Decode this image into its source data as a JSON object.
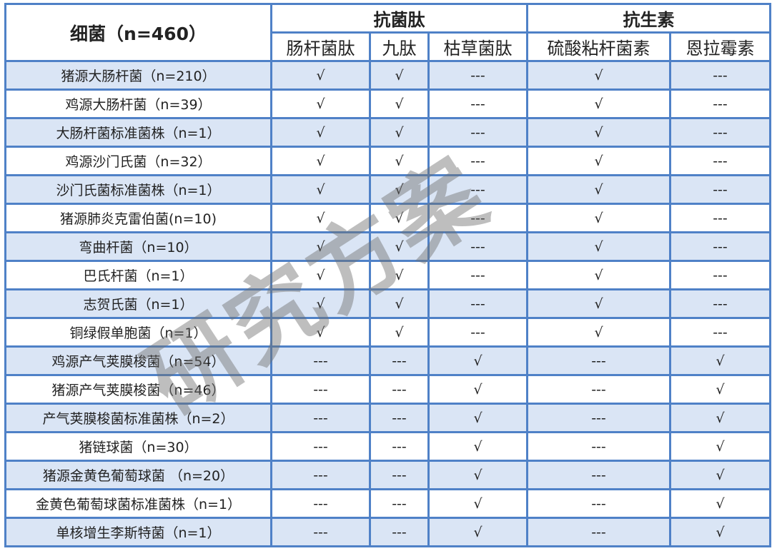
{
  "header": {
    "bacteria": "细菌（n=460）",
    "group1": "抗菌肽",
    "group2": "抗生素",
    "columns": [
      "肠杆菌肽",
      "九肽",
      "枯草菌肽",
      "硫酸粘杆菌素",
      "恩拉霉素"
    ]
  },
  "rows": [
    {
      "name": "猪源大肠杆菌（n=210）",
      "cells": [
        "√",
        "√",
        "---",
        "√",
        "---"
      ]
    },
    {
      "name": "鸡源大肠杆菌（n=39）",
      "cells": [
        "√",
        "√",
        "---",
        "√",
        "---"
      ]
    },
    {
      "name": "大肠杆菌标准菌株（n=1）",
      "cells": [
        "√",
        "√",
        "---",
        "√",
        "---"
      ]
    },
    {
      "name": "鸡源沙门氏菌（n=32）",
      "cells": [
        "√",
        "√",
        "---",
        "√",
        "---"
      ]
    },
    {
      "name": "沙门氏菌标准菌株（n=1）",
      "cells": [
        "√",
        "√",
        "---",
        "√",
        "---"
      ]
    },
    {
      "name": "猪源肺炎克雷伯菌(n=10)",
      "cells": [
        "√",
        "√",
        "---",
        "√",
        "---"
      ]
    },
    {
      "name": "弯曲杆菌（n=10）",
      "cells": [
        "√",
        "√",
        "---",
        "√",
        "---"
      ]
    },
    {
      "name": "巴氏杆菌（n=1）",
      "cells": [
        "√",
        "√",
        "---",
        "√",
        "---"
      ]
    },
    {
      "name": "志贺氏菌（n=1）",
      "cells": [
        "√",
        "√",
        "---",
        "√",
        "---"
      ]
    },
    {
      "name": "铜绿假单胞菌（n=1）",
      "cells": [
        "√",
        "√",
        "---",
        "√",
        "---"
      ]
    },
    {
      "name": "鸡源产气荚膜梭菌（n=54）",
      "cells": [
        "---",
        "---",
        "√",
        "---",
        "√"
      ]
    },
    {
      "name": "猪源产气荚膜梭菌（n=46）",
      "cells": [
        "---",
        "---",
        "√",
        "---",
        "√"
      ]
    },
    {
      "name": "产气荚膜梭菌标准菌株（n=2）",
      "cells": [
        "---",
        "---",
        "√",
        "---",
        "√"
      ]
    },
    {
      "name": "猪链球菌（n=30）",
      "cells": [
        "---",
        "---",
        "√",
        "---",
        "√"
      ]
    },
    {
      "name": "猪源金黄色葡萄球菌 （n=20）",
      "cells": [
        "---",
        "---",
        "√",
        "---",
        "√"
      ]
    },
    {
      "name": "金黄色葡萄球菌标准菌株（n=1）",
      "cells": [
        "---",
        "---",
        "√",
        "---",
        "√"
      ]
    },
    {
      "name": "单核增生李斯特菌（n=1）",
      "cells": [
        "---",
        "---",
        "√",
        "---",
        "√"
      ]
    }
  ],
  "watermark": "研究方案",
  "colors": {
    "border": "#4f81c7",
    "alt_row": "#dae5f5"
  }
}
